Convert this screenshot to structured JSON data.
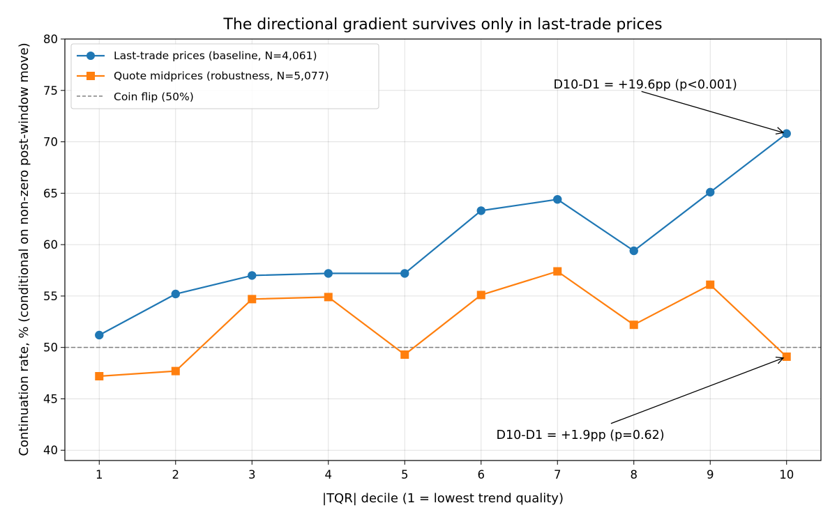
{
  "chart_data": {
    "type": "line",
    "title": "The directional gradient survives only in last-trade prices",
    "xlabel": "|TQR| decile (1 = lowest trend quality)",
    "ylabel": "Continuation rate, % (conditional on non-zero post-window move)",
    "x": [
      1,
      2,
      3,
      4,
      5,
      6,
      7,
      8,
      9,
      10
    ],
    "xlim": [
      0.55,
      10.45
    ],
    "ylim": [
      39,
      80
    ],
    "yticks": [
      40,
      45,
      50,
      55,
      60,
      65,
      70,
      75,
      80
    ],
    "grid": true,
    "legend_position": "top-left",
    "series": [
      {
        "name": "Last-trade prices (baseline, N=4,061)",
        "color": "#1f77b4",
        "marker": "circle",
        "values": [
          51.2,
          55.2,
          57.0,
          57.2,
          57.2,
          63.3,
          64.4,
          59.4,
          65.1,
          70.8
        ]
      },
      {
        "name": "Quote midprices (robustness, N=5,077)",
        "color": "#ff7f0e",
        "marker": "square",
        "values": [
          47.2,
          47.7,
          54.7,
          54.9,
          49.3,
          55.1,
          57.4,
          52.2,
          56.1,
          49.1
        ]
      }
    ],
    "reference_line": {
      "name": "Coin flip (50%)",
      "y": 50,
      "color": "#808080",
      "style": "dashed"
    },
    "annotations": [
      {
        "text": "D10-D1 = +19.6pp (p<0.001)",
        "text_at": {
          "x": 8.15,
          "y": 75.6
        },
        "arrow_to": {
          "x": 10,
          "y": 70.8
        },
        "arrow_from": {
          "x": 8.1,
          "y": 74.9
        }
      },
      {
        "text": "D10-D1 = +1.9pp (p=0.62)",
        "text_at": {
          "x": 7.3,
          "y": 41.5
        },
        "arrow_to": {
          "x": 10,
          "y": 49.1
        },
        "arrow_from": {
          "x": 7.7,
          "y": 42.6
        }
      }
    ]
  }
}
